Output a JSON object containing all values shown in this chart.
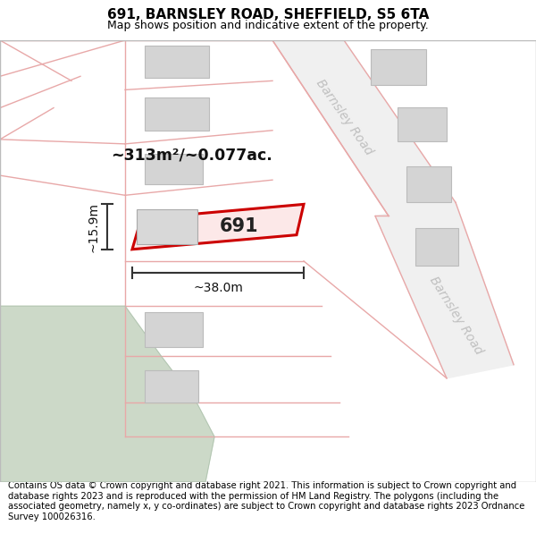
{
  "title": "691, BARNSLEY ROAD, SHEFFIELD, S5 6TA",
  "subtitle": "Map shows position and indicative extent of the property.",
  "footer": "Contains OS data © Crown copyright and database right 2021. This information is subject to Crown copyright and database rights 2023 and is reproduced with the permission of HM Land Registry. The polygons (including the associated geometry, namely x, y co-ordinates) are subject to Crown copyright and database rights 2023 Ordnance Survey 100026316.",
  "area_label": "~313m²/~0.077ac.",
  "width_label": "~38.0m",
  "height_label": "~15.9m",
  "property_number": "691",
  "map_bg": "#ffffff",
  "road_fill": "#f0f0f0",
  "plot_line_color": "#e8a8a8",
  "building_fill": "#d4d4d4",
  "building_stroke": "#bbbbbb",
  "green_area": "#ccd9c8",
  "highlight_color": "#cc0000",
  "highlight_fill": "#fce8e8",
  "road_label_color": "#c0c0c0",
  "dim_line_color": "#333333",
  "title_fontsize": 11,
  "subtitle_fontsize": 9,
  "footer_fontsize": 7.2,
  "border_color": "#bbbbbb"
}
